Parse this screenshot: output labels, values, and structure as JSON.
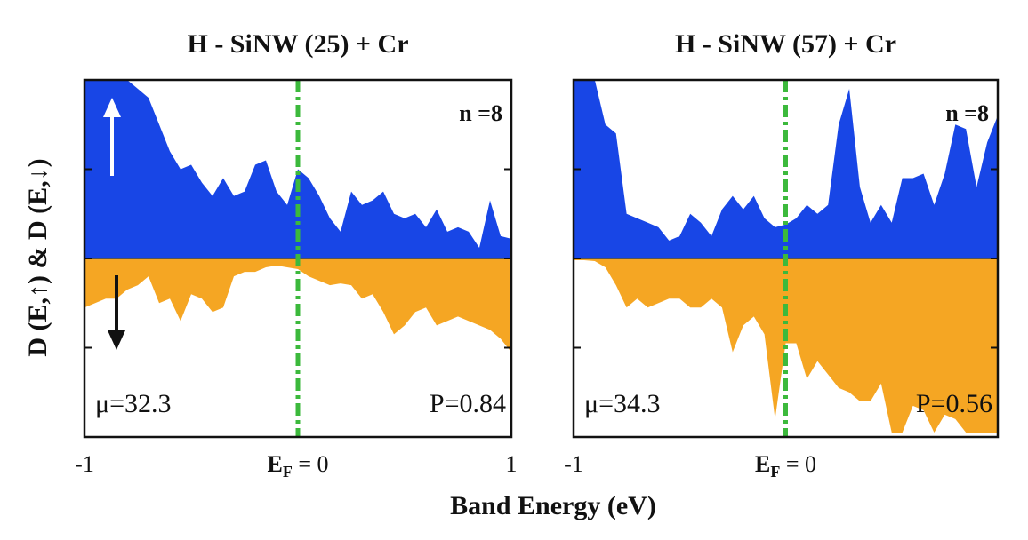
{
  "figure": {
    "xlabel": "Band Energy (eV)",
    "ylabel": "D (E,↑) & D (E,↓)"
  },
  "chart_data": [
    {
      "type": "area",
      "title": "H - SiNW (25) + Cr",
      "x": [
        -1,
        -0.95,
        -0.9,
        -0.85,
        -0.8,
        -0.75,
        -0.7,
        -0.65,
        -0.6,
        -0.55,
        -0.5,
        -0.45,
        -0.4,
        -0.35,
        -0.3,
        -0.25,
        -0.2,
        -0.15,
        -0.1,
        -0.05,
        0,
        0.05,
        0.1,
        0.15,
        0.2,
        0.25,
        0.3,
        0.35,
        0.4,
        0.45,
        0.5,
        0.55,
        0.6,
        0.65,
        0.7,
        0.75,
        0.8,
        0.85,
        0.9,
        0.95,
        1
      ],
      "series": [
        {
          "color": "#1846e6",
          "values": [
            2,
            2,
            2,
            2,
            2,
            1.9,
            1.8,
            1.5,
            1.2,
            1,
            1.05,
            0.85,
            0.7,
            0.9,
            0.7,
            0.75,
            1.05,
            1.1,
            0.75,
            0.6,
            1,
            0.9,
            0.7,
            0.45,
            0.3,
            0.75,
            0.6,
            0.65,
            0.75,
            0.5,
            0.45,
            0.5,
            0.35,
            0.55,
            0.3,
            0.35,
            0.3,
            0.12,
            0.65,
            0.25,
            0.22
          ]
        },
        {
          "color": "#f5a623",
          "values": [
            -0.55,
            -0.5,
            -0.45,
            -0.45,
            -0.35,
            -0.3,
            -0.2,
            -0.5,
            -0.45,
            -0.7,
            -0.4,
            -0.45,
            -0.6,
            -0.55,
            -0.2,
            -0.15,
            -0.15,
            -0.1,
            -0.08,
            -0.1,
            -0.12,
            -0.2,
            -0.25,
            -0.3,
            -0.28,
            -0.3,
            -0.45,
            -0.4,
            -0.6,
            -0.85,
            -0.75,
            -0.6,
            -0.55,
            -0.75,
            -0.7,
            -0.65,
            -0.7,
            -0.75,
            -0.8,
            -0.9,
            -1.05
          ]
        }
      ],
      "xlim": [
        -1,
        1
      ],
      "xticks": [
        -1,
        {
          "value": 0,
          "label": "EF = 0"
        },
        1
      ],
      "ylim": [
        -2,
        2
      ],
      "yticks": [
        -1,
        0,
        1
      ],
      "vline": 0,
      "vline_color": "#3cb93c",
      "annotations": [
        "n =8",
        "μ=32.3",
        "P=0.84"
      ]
    },
    {
      "type": "area",
      "title": "H - SiNW (57) + Cr",
      "x": [
        -1,
        -0.95,
        -0.9,
        -0.85,
        -0.8,
        -0.75,
        -0.7,
        -0.65,
        -0.6,
        -0.55,
        -0.5,
        -0.45,
        -0.4,
        -0.35,
        -0.3,
        -0.25,
        -0.2,
        -0.15,
        -0.1,
        -0.05,
        0,
        0.05,
        0.1,
        0.15,
        0.2,
        0.25,
        0.3,
        0.35,
        0.4,
        0.45,
        0.5,
        0.55,
        0.6,
        0.65,
        0.7,
        0.75,
        0.8,
        0.85,
        0.9,
        0.95,
        1
      ],
      "series": [
        {
          "color": "#1846e6",
          "values": [
            2,
            2,
            2,
            1.5,
            1.4,
            0.5,
            0.45,
            0.4,
            0.35,
            0.2,
            0.25,
            0.5,
            0.4,
            0.25,
            0.55,
            0.7,
            0.55,
            0.7,
            0.45,
            0.35,
            0.38,
            0.45,
            0.6,
            0.5,
            0.6,
            1.5,
            1.9,
            0.8,
            0.4,
            0.6,
            0.4,
            0.9,
            0.9,
            0.95,
            0.6,
            0.95,
            1.5,
            1.45,
            0.8,
            1.3,
            1.6
          ]
        },
        {
          "color": "#f5a623",
          "values": [
            -0.02,
            -0.02,
            -0.03,
            -0.1,
            -0.3,
            -0.55,
            -0.45,
            -0.55,
            -0.5,
            -0.45,
            -0.45,
            -0.55,
            -0.55,
            -0.45,
            -0.55,
            -1.05,
            -0.75,
            -0.65,
            -0.85,
            -1.8,
            -0.95,
            -0.95,
            -1.35,
            -1.15,
            -1.3,
            -1.45,
            -1.5,
            -1.6,
            -1.6,
            -1.4,
            -1.95,
            -1.95,
            -1.65,
            -1.7,
            -1.95,
            -1.75,
            -1.8,
            -1.95,
            -1.95,
            -1.95,
            -1.95
          ]
        }
      ],
      "xlim": [
        -1,
        1
      ],
      "xticks": [
        -1,
        {
          "value": 0,
          "label": "EF = 0"
        }
      ],
      "ylim": [
        -2,
        2
      ],
      "yticks": [
        -1,
        0,
        1
      ],
      "vline": 0,
      "vline_color": "#3cb93c",
      "annotations": [
        "n =8",
        "μ=34.3",
        "P=0.56"
      ]
    }
  ]
}
